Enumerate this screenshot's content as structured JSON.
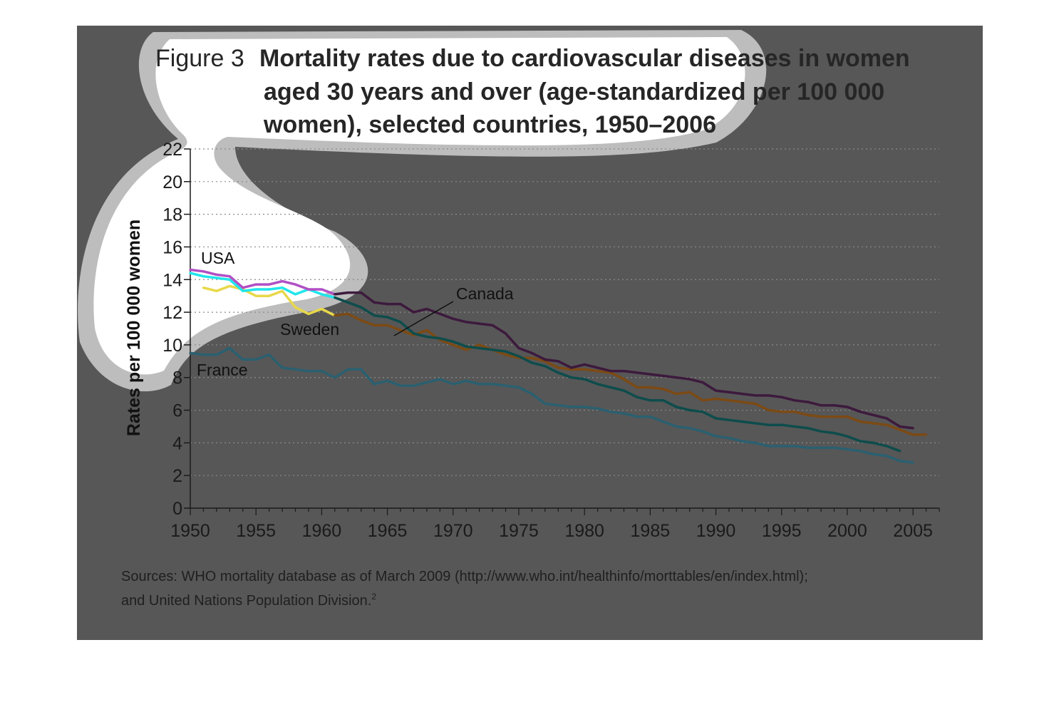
{
  "figure": {
    "title_prefix": "Figure 3",
    "title_lines": [
      "Mortality rates due to cardiovascular diseases in women",
      "aged 30 years and over (age-standardized per 100 000",
      "women), selected countries, 1950–2006"
    ],
    "sources_lines": [
      "Sources: WHO mortality database as of March 2009 (http://www.who.int/healthinfo/morttables/en/index.html);",
      "and United Nations Population Division."
    ],
    "sources_footnote": "2"
  },
  "chart_data": {
    "type": "line",
    "ylabel": "Rates per 100 000 women",
    "xlabel": "",
    "xlim": [
      1950,
      2007
    ],
    "ylim": [
      0,
      22
    ],
    "xticks": [
      "1950",
      "1955",
      "1960",
      "1965",
      "1970",
      "1975",
      "1980",
      "1985",
      "1990",
      "1995",
      "2000",
      "2005"
    ],
    "yticks": [
      "0",
      "2",
      "4",
      "6",
      "8",
      "10",
      "12",
      "14",
      "16",
      "18",
      "20",
      "22"
    ],
    "grid": "horizontal dotted",
    "series": [
      {
        "name": "USA",
        "color": "#3d1a3d",
        "color_highlight": "#b14fc5",
        "x": [
          1950,
          1951,
          1952,
          1953,
          1954,
          1955,
          1956,
          1957,
          1958,
          1959,
          1960,
          1961,
          1962,
          1963,
          1964,
          1965,
          1966,
          1967,
          1968,
          1969,
          1970,
          1971,
          1972,
          1973,
          1974,
          1975,
          1976,
          1977,
          1978,
          1979,
          1980,
          1981,
          1982,
          1983,
          1984,
          1985,
          1986,
          1987,
          1988,
          1989,
          1990,
          1991,
          1992,
          1993,
          1994,
          1995,
          1996,
          1997,
          1998,
          1999,
          2000,
          2001,
          2002,
          2003,
          2004,
          2005
        ],
        "y": [
          14.6,
          14.5,
          14.3,
          14.2,
          13.5,
          13.7,
          13.7,
          13.9,
          13.7,
          13.4,
          13.4,
          13.1,
          13.2,
          13.2,
          12.6,
          12.5,
          12.5,
          12.0,
          12.2,
          11.9,
          11.6,
          11.4,
          11.3,
          11.2,
          10.7,
          9.8,
          9.5,
          9.1,
          9.0,
          8.6,
          8.8,
          8.6,
          8.4,
          8.4,
          8.3,
          8.2,
          8.1,
          8.0,
          7.9,
          7.7,
          7.2,
          7.1,
          7.0,
          6.9,
          6.9,
          6.8,
          6.6,
          6.5,
          6.3,
          6.3,
          6.2,
          5.9,
          5.7,
          5.5,
          5.0,
          4.9
        ]
      },
      {
        "name": "Canada",
        "color": "#0e4c4c",
        "color_highlight": "#1fe6ec",
        "x": [
          1950,
          1951,
          1952,
          1953,
          1954,
          1955,
          1956,
          1957,
          1958,
          1959,
          1960,
          1961,
          1962,
          1963,
          1964,
          1965,
          1966,
          1967,
          1968,
          1969,
          1970,
          1971,
          1972,
          1973,
          1974,
          1975,
          1976,
          1977,
          1978,
          1979,
          1980,
          1981,
          1982,
          1983,
          1984,
          1985,
          1986,
          1987,
          1988,
          1989,
          1990,
          1991,
          1992,
          1993,
          1994,
          1995,
          1996,
          1997,
          1998,
          1999,
          2000,
          2001,
          2002,
          2003,
          2004
        ],
        "y": [
          14.4,
          14.2,
          14.1,
          14.0,
          13.3,
          13.4,
          13.4,
          13.5,
          13.1,
          13.4,
          13.1,
          12.9,
          12.6,
          12.3,
          11.8,
          11.7,
          11.4,
          10.7,
          10.5,
          10.4,
          10.2,
          9.9,
          9.8,
          9.7,
          9.6,
          9.3,
          8.9,
          8.7,
          8.3,
          8.0,
          7.9,
          7.6,
          7.4,
          7.2,
          6.8,
          6.6,
          6.6,
          6.2,
          6.0,
          5.9,
          5.5,
          5.4,
          5.3,
          5.2,
          5.1,
          5.1,
          5.0,
          4.9,
          4.7,
          4.6,
          4.4,
          4.1,
          4.0,
          3.8,
          3.5
        ]
      },
      {
        "name": "Sweden",
        "color": "#7c4a14",
        "color_highlight": "#e8d84a",
        "x": [
          1951,
          1952,
          1953,
          1954,
          1955,
          1956,
          1957,
          1958,
          1959,
          1960,
          1961,
          1962,
          1963,
          1964,
          1965,
          1966,
          1967,
          1968,
          1969,
          1970,
          1971,
          1972,
          1973,
          1974,
          1975,
          1976,
          1977,
          1978,
          1979,
          1980,
          1981,
          1982,
          1983,
          1984,
          1985,
          1986,
          1987,
          1988,
          1989,
          1990,
          1991,
          1992,
          1993,
          1994,
          1995,
          1996,
          1997,
          1998,
          1999,
          2000,
          2001,
          2002,
          2003,
          2004,
          2005,
          2006
        ],
        "y": [
          13.5,
          13.3,
          13.6,
          13.4,
          13.0,
          13.0,
          13.3,
          12.3,
          11.9,
          12.2,
          11.8,
          11.9,
          11.5,
          11.2,
          11.2,
          10.9,
          10.6,
          10.9,
          10.3,
          10.0,
          9.7,
          10.0,
          9.7,
          9.4,
          9.2,
          9.2,
          9.0,
          8.6,
          8.5,
          8.5,
          8.4,
          8.3,
          7.9,
          7.4,
          7.4,
          7.3,
          7.0,
          7.1,
          6.6,
          6.7,
          6.6,
          6.5,
          6.4,
          6.0,
          5.9,
          5.9,
          5.7,
          5.6,
          5.6,
          5.6,
          5.3,
          5.2,
          5.1,
          4.8,
          4.5,
          4.5
        ]
      },
      {
        "name": "France",
        "color": "#2a6070",
        "x": [
          1950,
          1951,
          1952,
          1953,
          1954,
          1955,
          1956,
          1957,
          1958,
          1959,
          1960,
          1961,
          1962,
          1963,
          1964,
          1965,
          1966,
          1967,
          1968,
          1969,
          1970,
          1971,
          1972,
          1973,
          1974,
          1975,
          1976,
          1977,
          1978,
          1979,
          1980,
          1981,
          1982,
          1983,
          1984,
          1985,
          1986,
          1987,
          1988,
          1989,
          1990,
          1991,
          1992,
          1993,
          1994,
          1995,
          1996,
          1997,
          1998,
          1999,
          2000,
          2001,
          2002,
          2003,
          2004,
          2005
        ],
        "y": [
          9.5,
          9.4,
          9.4,
          9.8,
          9.1,
          9.1,
          9.4,
          8.6,
          8.5,
          8.4,
          8.4,
          8.0,
          8.5,
          8.5,
          7.6,
          7.8,
          7.5,
          7.5,
          7.7,
          7.9,
          7.6,
          7.8,
          7.6,
          7.6,
          7.5,
          7.4,
          7.0,
          6.4,
          6.3,
          6.2,
          6.2,
          6.1,
          5.9,
          5.8,
          5.6,
          5.6,
          5.3,
          5.0,
          4.9,
          4.7,
          4.4,
          4.3,
          4.1,
          4.0,
          3.8,
          3.8,
          3.8,
          3.7,
          3.7,
          3.7,
          3.6,
          3.5,
          3.3,
          3.2,
          2.9,
          2.8
        ]
      }
    ],
    "highlight_before_year": 1961,
    "highlight_region_color": "#ffffff",
    "highlight_border_color": "#bdbdbd"
  }
}
